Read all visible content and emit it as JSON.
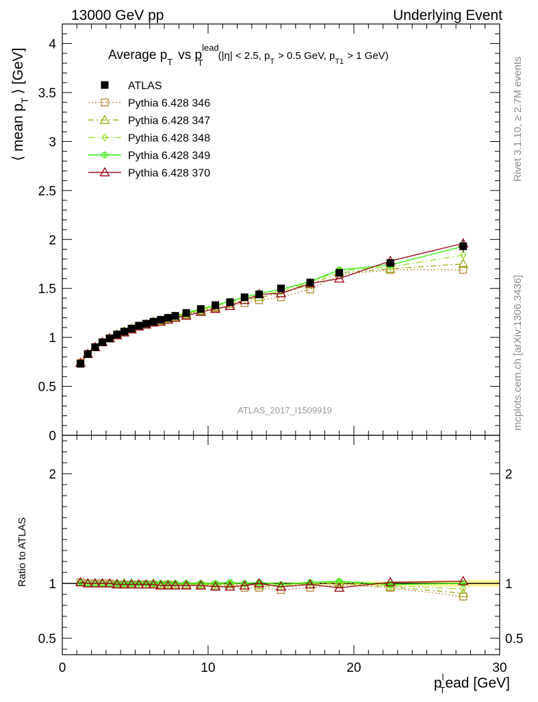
{
  "header": {
    "left": "13000 GeV pp",
    "right": "Underlying Event"
  },
  "side_labels": {
    "rivet": "Rivet 3.1.10, ≥ 2.7M events",
    "mcplots": "mcplots.cern.ch [arXiv:1306.3436]"
  },
  "analysis_id": "ATLAS_2017_I1509919",
  "chart_data": [
    {
      "panel": "main",
      "type": "line",
      "title": "Average p_T vs p_T^lead (|η| < 2.5, p_T > 0.5 GeV, p_T1 > 1 GeV)",
      "title_parts": {
        "a": "Average p",
        "a_sub": "T",
        "b": "vs p",
        "b_sup": "lead",
        "b_sub": "T",
        "c": "(|η| < 2.5, p",
        "c_sub": "T",
        "d": "> 0.5 GeV, p",
        "d_sub": "T1",
        "e": "> 1 GeV)"
      },
      "ylabel": "⟨ mean p_T ⟩ [GeV]",
      "ylabel_parts": {
        "a": "⟨ mean p",
        "sub": "T",
        "b": "⟩ [GeV]"
      },
      "xlim": [
        0,
        30
      ],
      "ylim": [
        0,
        4.2
      ],
      "y_ticks": [
        0,
        0.5,
        1,
        1.5,
        2,
        2.5,
        3,
        3.5,
        4
      ],
      "y_tick_labels": [
        "0",
        "0.5",
        "1",
        "1.5",
        "2",
        "2.5",
        "3",
        "3.5",
        "4"
      ],
      "legend_position": "top-left",
      "x": [
        1.25,
        1.75,
        2.25,
        2.75,
        3.25,
        3.75,
        4.25,
        4.75,
        5.25,
        5.75,
        6.25,
        6.75,
        7.25,
        7.75,
        8.5,
        9.5,
        10.5,
        11.5,
        12.5,
        13.5,
        15,
        17,
        19,
        22.5,
        27.5
      ],
      "series": [
        {
          "name": "ATLAS",
          "color": "#000000",
          "marker": "square-filled",
          "y": [
            0.73,
            0.83,
            0.9,
            0.95,
            0.99,
            1.03,
            1.06,
            1.09,
            1.12,
            1.14,
            1.16,
            1.18,
            1.2,
            1.22,
            1.25,
            1.29,
            1.33,
            1.36,
            1.41,
            1.44,
            1.5,
            1.56,
            1.66,
            1.76,
            1.93
          ],
          "yerr": [
            0.01,
            0.01,
            0.01,
            0.01,
            0.01,
            0.01,
            0.01,
            0.01,
            0.01,
            0.01,
            0.01,
            0.01,
            0.01,
            0.01,
            0.01,
            0.01,
            0.01,
            0.01,
            0.01,
            0.01,
            0.01,
            0.02,
            0.03,
            0.04,
            0.06
          ]
        },
        {
          "name": "Pythia 6.428 346",
          "color": "#b88a40",
          "marker": "square-open",
          "dash": "2,3",
          "y": [
            0.74,
            0.83,
            0.9,
            0.95,
            0.99,
            1.02,
            1.05,
            1.08,
            1.11,
            1.13,
            1.15,
            1.16,
            1.19,
            1.2,
            1.23,
            1.27,
            1.3,
            1.32,
            1.35,
            1.38,
            1.41,
            1.49,
            1.64,
            1.69,
            1.69
          ]
        },
        {
          "name": "Pythia 6.428 347",
          "color": "#a0b020",
          "marker": "triangle-open",
          "dash": "8,4,2,4",
          "y": [
            0.74,
            0.83,
            0.9,
            0.95,
            0.99,
            1.03,
            1.06,
            1.09,
            1.11,
            1.13,
            1.16,
            1.17,
            1.19,
            1.21,
            1.24,
            1.28,
            1.31,
            1.34,
            1.38,
            1.41,
            1.45,
            1.54,
            1.66,
            1.7,
            1.75
          ]
        },
        {
          "name": "Pythia 6.428 348",
          "color": "#9ee030",
          "marker": "diamond-open",
          "dash": "10,4,2,4",
          "y": [
            0.74,
            0.83,
            0.9,
            0.95,
            0.99,
            1.03,
            1.06,
            1.09,
            1.12,
            1.14,
            1.16,
            1.18,
            1.2,
            1.22,
            1.25,
            1.28,
            1.32,
            1.36,
            1.4,
            1.43,
            1.47,
            1.56,
            1.68,
            1.72,
            1.84
          ]
        },
        {
          "name": "Pythia 6.428 349",
          "color": "#33ee11",
          "marker": "circle-cross",
          "y": [
            0.74,
            0.83,
            0.9,
            0.95,
            0.99,
            1.03,
            1.06,
            1.09,
            1.12,
            1.14,
            1.16,
            1.18,
            1.2,
            1.22,
            1.25,
            1.29,
            1.33,
            1.37,
            1.41,
            1.45,
            1.49,
            1.57,
            1.69,
            1.74,
            1.93
          ]
        },
        {
          "name": "Pythia 6.428 370",
          "color": "#9a1020",
          "marker": "triangle-open",
          "y": [
            0.74,
            0.83,
            0.9,
            0.95,
            0.99,
            1.02,
            1.05,
            1.08,
            1.11,
            1.13,
            1.15,
            1.16,
            1.18,
            1.2,
            1.22,
            1.26,
            1.29,
            1.32,
            1.38,
            1.44,
            1.45,
            1.55,
            1.6,
            1.78,
            1.96
          ]
        }
      ]
    },
    {
      "panel": "ratio",
      "type": "line",
      "ylabel": "Ratio to ATLAS",
      "xlabel": "p_T^lead [GeV]",
      "xlabel_parts": {
        "a": "p",
        "sup": "l",
        "sub": "T",
        "b": "ead [GeV]"
      },
      "xlim": [
        0,
        30
      ],
      "x_ticks": [
        0,
        10,
        20,
        30
      ],
      "x_tick_labels": [
        "0",
        "10",
        "20",
        "30"
      ],
      "ylim": [
        0.35,
        2.35
      ],
      "y_ticks": [
        0.5,
        1,
        2
      ],
      "y_tick_labels": [
        "0.5",
        "1",
        "2"
      ],
      "x": [
        1.25,
        1.75,
        2.25,
        2.75,
        3.25,
        3.75,
        4.25,
        4.75,
        5.25,
        5.75,
        6.25,
        6.75,
        7.25,
        7.75,
        8.5,
        9.5,
        10.5,
        11.5,
        12.5,
        13.5,
        15,
        17,
        19,
        22.5,
        27.5
      ],
      "band_halfwidth": [
        0.01,
        0.01,
        0.01,
        0.01,
        0.01,
        0.01,
        0.01,
        0.01,
        0.01,
        0.01,
        0.01,
        0.01,
        0.01,
        0.01,
        0.01,
        0.01,
        0.01,
        0.01,
        0.01,
        0.01,
        0.01,
        0.012,
        0.015,
        0.02,
        0.03
      ],
      "series": [
        {
          "name": "Pythia 6.428 346",
          "y": [
            1.01,
            1.0,
            1.0,
            1.0,
            1.0,
            0.99,
            0.99,
            0.99,
            0.99,
            0.99,
            0.99,
            0.98,
            0.99,
            0.98,
            0.98,
            0.98,
            0.98,
            0.97,
            0.96,
            0.96,
            0.94,
            0.96,
            0.99,
            0.96,
            0.88
          ]
        },
        {
          "name": "Pythia 6.428 347",
          "y": [
            1.01,
            1.0,
            1.0,
            1.0,
            1.0,
            1.0,
            1.0,
            1.0,
            0.99,
            0.99,
            1.0,
            0.99,
            0.99,
            0.99,
            0.99,
            0.99,
            0.98,
            0.99,
            0.98,
            0.98,
            0.97,
            0.99,
            1.0,
            0.97,
            0.91
          ]
        },
        {
          "name": "Pythia 6.428 348",
          "y": [
            1.01,
            1.0,
            1.0,
            1.0,
            1.0,
            1.0,
            1.0,
            1.0,
            1.0,
            1.0,
            1.0,
            1.0,
            1.0,
            1.0,
            1.0,
            0.99,
            0.99,
            1.0,
            0.99,
            0.99,
            0.98,
            1.0,
            1.01,
            0.98,
            0.95
          ]
        },
        {
          "name": "Pythia 6.428 349",
          "y": [
            1.01,
            1.0,
            1.0,
            1.0,
            1.0,
            1.0,
            1.0,
            1.0,
            1.0,
            1.0,
            1.0,
            1.0,
            1.0,
            1.0,
            1.0,
            1.0,
            1.0,
            1.01,
            1.0,
            1.01,
            0.99,
            1.01,
            1.02,
            0.99,
            1.0
          ]
        },
        {
          "name": "Pythia 6.428 370",
          "y": [
            1.01,
            1.0,
            1.0,
            1.0,
            1.0,
            0.99,
            0.99,
            0.99,
            0.99,
            0.99,
            0.99,
            0.98,
            0.98,
            0.98,
            0.98,
            0.98,
            0.97,
            0.97,
            0.98,
            1.0,
            0.97,
            0.99,
            0.96,
            1.01,
            1.02
          ]
        }
      ]
    }
  ]
}
